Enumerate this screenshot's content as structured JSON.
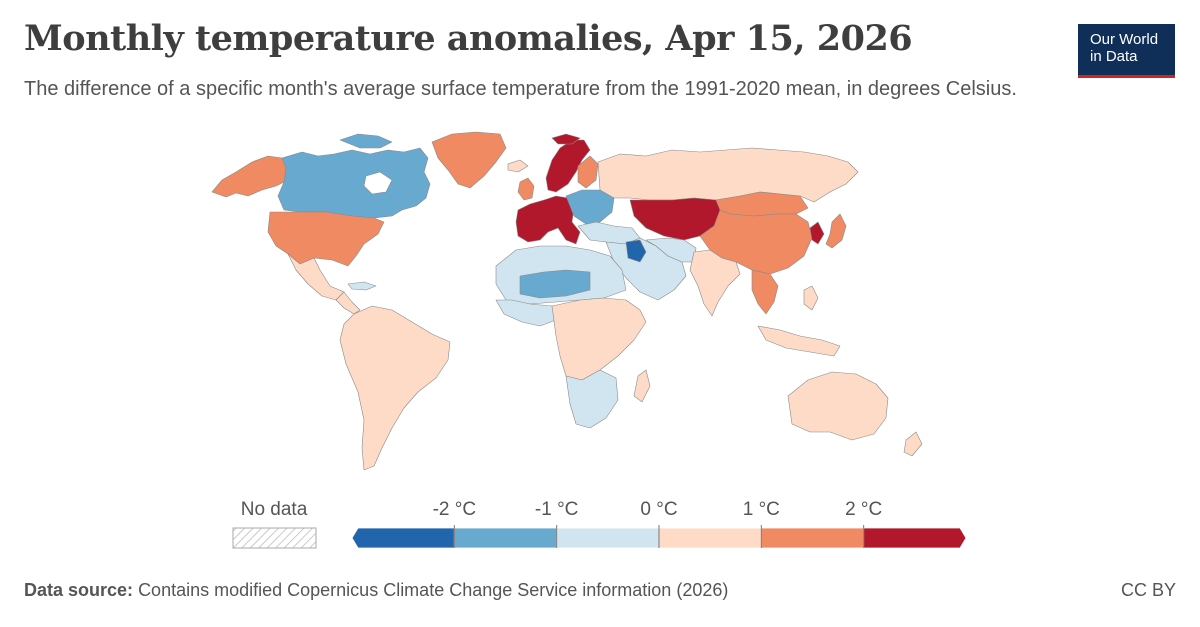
{
  "header": {
    "title": "Monthly temperature anomalies, Apr 15, 2026",
    "subtitle": "The difference of a specific month's average surface temperature from the 1991-2020 mean, in degrees Celsius.",
    "logo_line1": "Our World",
    "logo_line2": "in Data"
  },
  "legend": {
    "no_data_label": "No data",
    "tick_labels": [
      "-2 °C",
      "-1 °C",
      "0 °C",
      "1 °C",
      "2 °C"
    ],
    "bins": [
      {
        "color": "#2166ac"
      },
      {
        "color": "#67a9cf"
      },
      {
        "color": "#d1e5f0"
      },
      {
        "color": "#fddbc7"
      },
      {
        "color": "#ef8a62"
      },
      {
        "color": "#b2182b"
      }
    ]
  },
  "colors": {
    "strong_cold": "#2166ac",
    "cold": "#67a9cf",
    "slight_cold": "#d1e5f0",
    "slight_warm": "#fddbc7",
    "warm": "#ef8a62",
    "strong_warm": "#b2182b",
    "brand_blue": "#0f2e58",
    "brand_red": "#ce261e"
  },
  "footer": {
    "source_label": "Data source:",
    "source_text": "Contains modified Copernicus Climate Change Service information (2026)",
    "license": "CC BY"
  }
}
